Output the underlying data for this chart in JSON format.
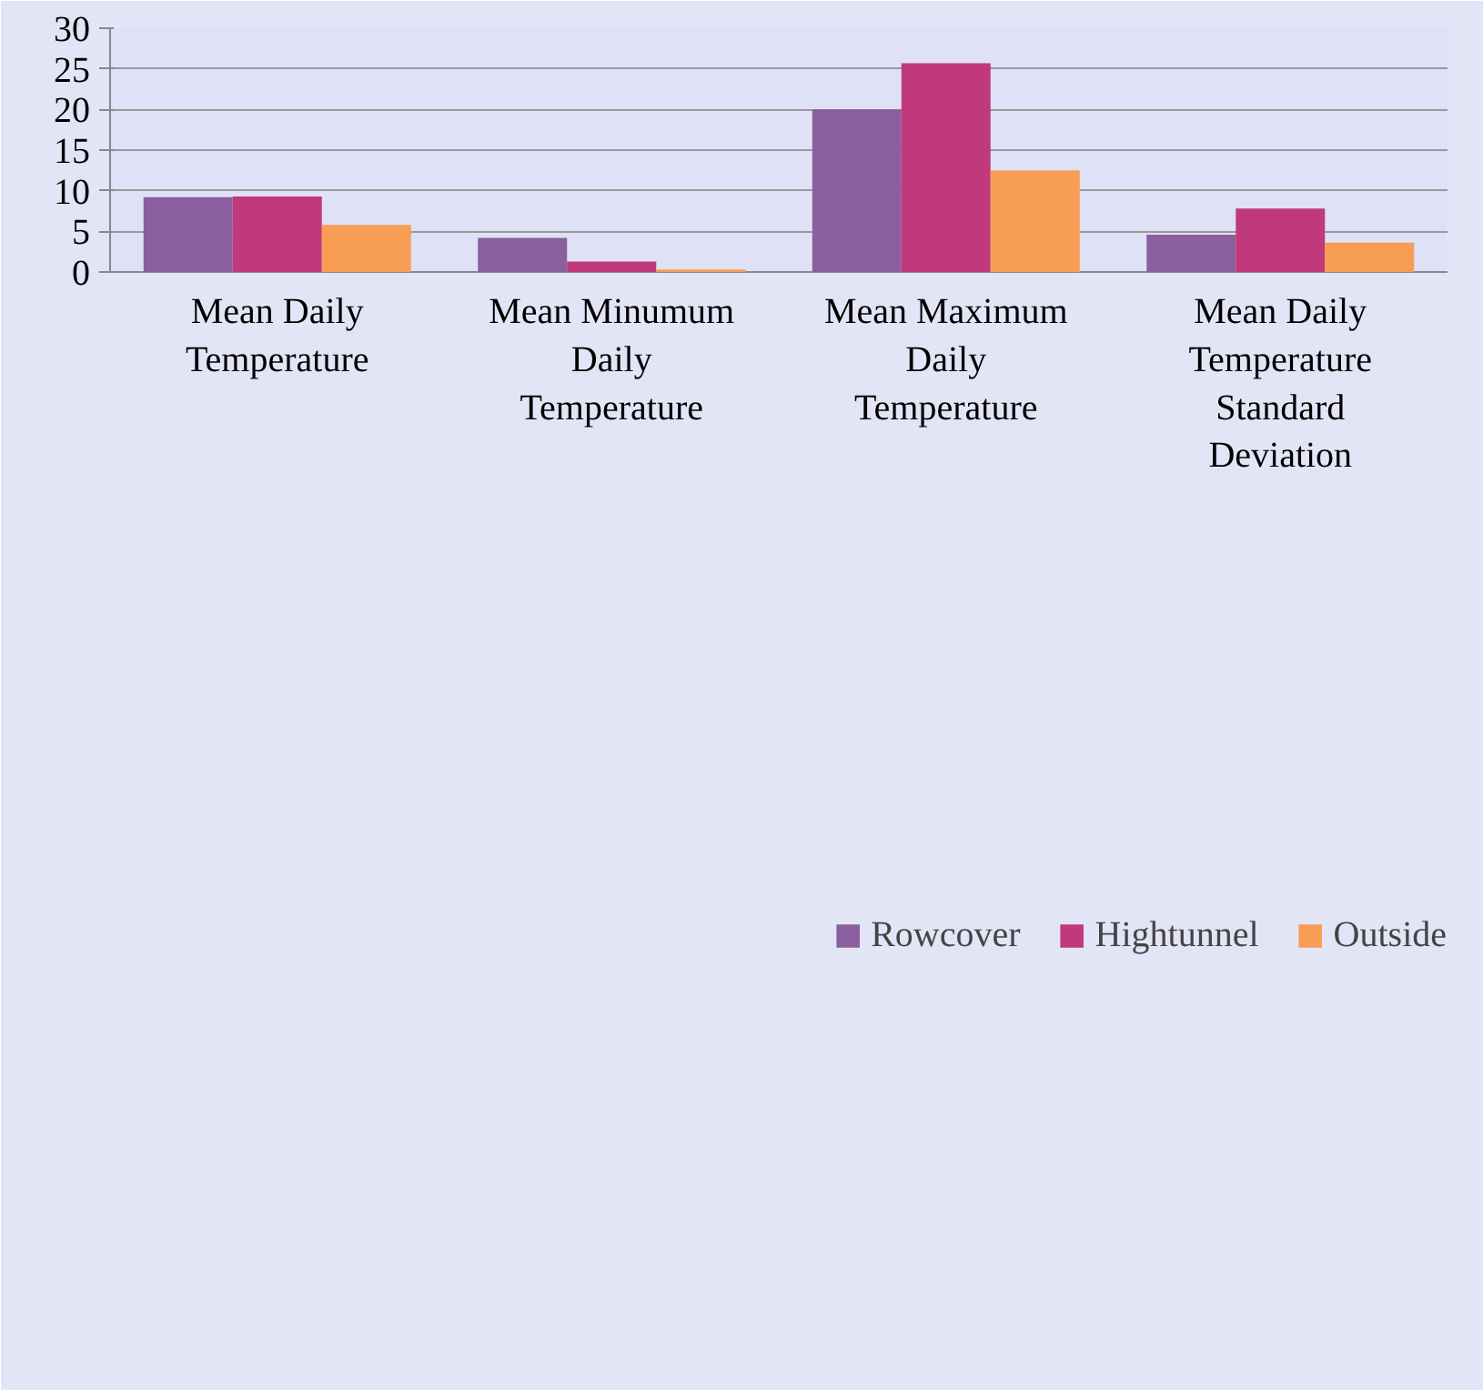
{
  "chart_data": {
    "type": "bar",
    "categories": [
      "Mean Daily Temperature",
      "Mean Minumum Daily Temperature",
      "Mean Maximum Daily Temperature",
      "Mean Daily Temperature Standard Deviation"
    ],
    "series": [
      {
        "name": "Rowcover",
        "color": "#8b5f9e",
        "values": [
          9.2,
          4.2,
          20.0,
          4.6
        ]
      },
      {
        "name": "Hightunnel",
        "color": "#c0397a",
        "values": [
          9.3,
          1.3,
          25.7,
          7.8
        ]
      },
      {
        "name": "Outside",
        "color": "#f79d54",
        "values": [
          5.8,
          0.3,
          12.5,
          3.6
        ]
      }
    ],
    "ylim": [
      0,
      30
    ],
    "yticks": [
      0,
      5,
      10,
      15,
      20,
      25,
      30
    ],
    "grid": "y",
    "legend": "bottom"
  }
}
